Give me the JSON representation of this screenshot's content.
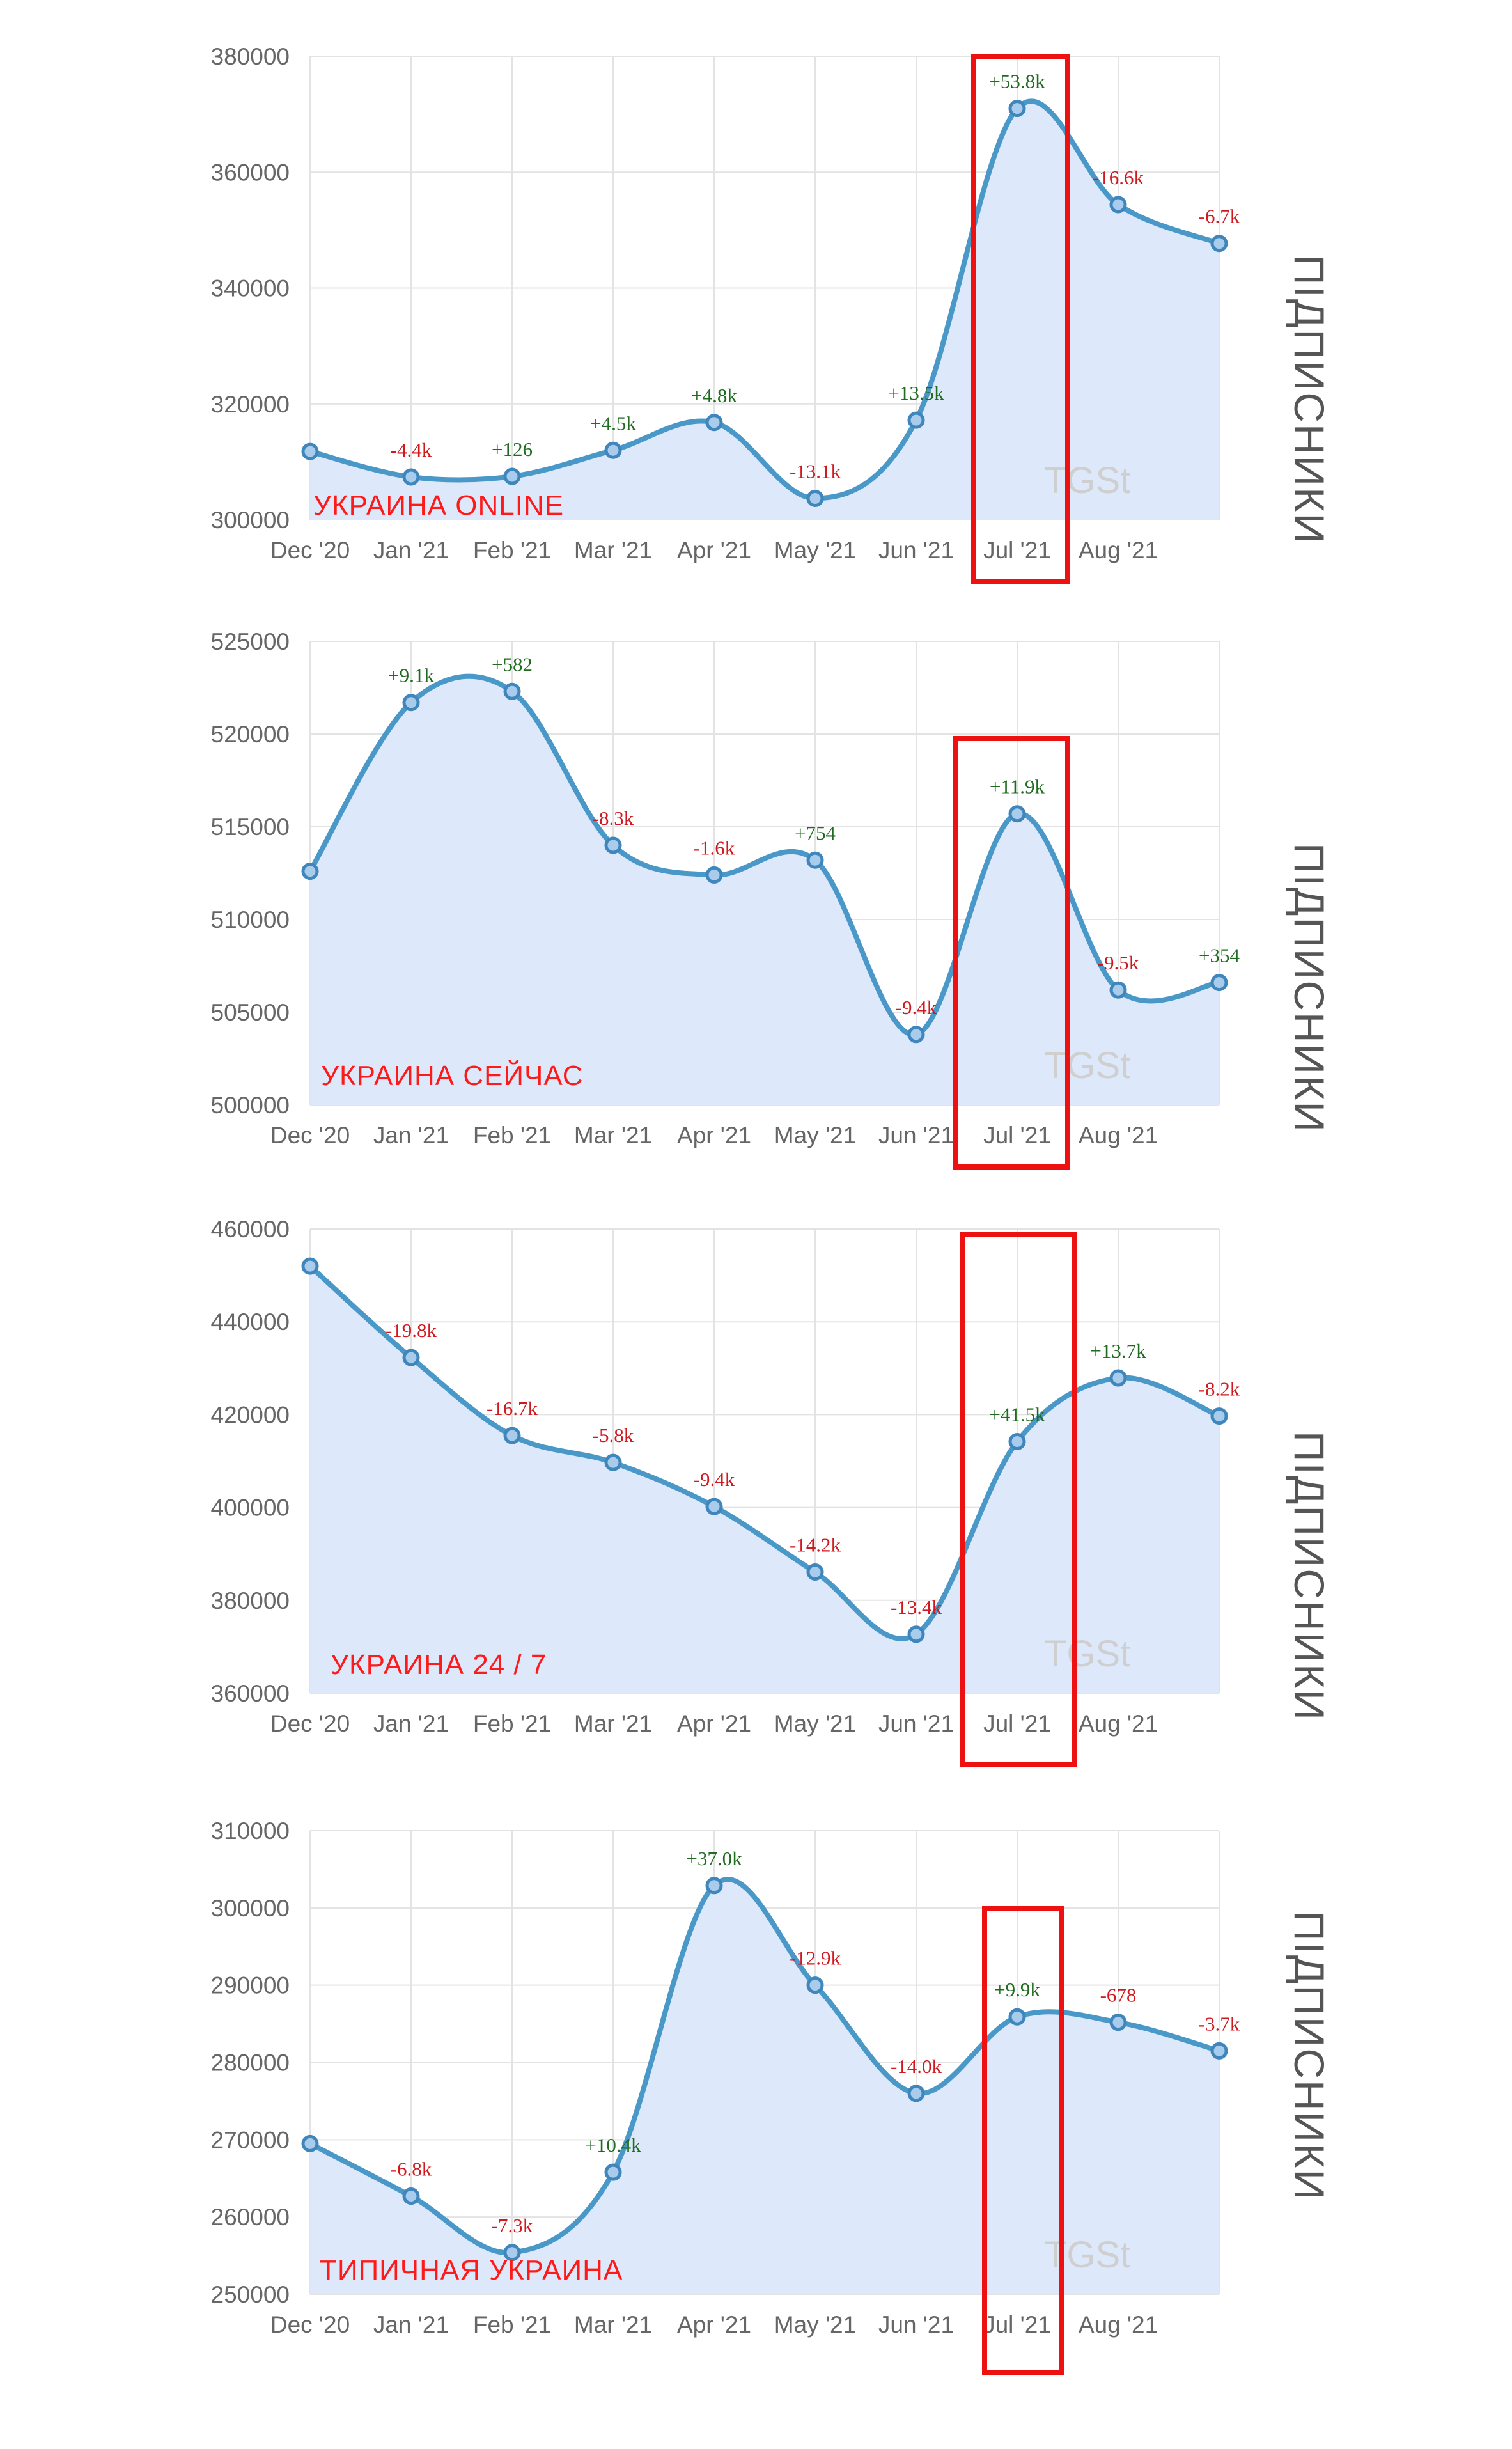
{
  "side_label": "ПІДПИСНИКИ",
  "watermark": "TGSt",
  "chart_data": [
    {
      "type": "area",
      "channel": "УКРАИНА ONLINE",
      "categories": [
        "Dec '20",
        "Jan '21",
        "Feb '21",
        "Mar '21",
        "Apr '21",
        "May '21",
        "Jun '21",
        "Jul '21",
        "Aug '21",
        ""
      ],
      "series": [
        {
          "values": [
            311800,
            307400,
            307500,
            312000,
            316800,
            303700,
            317200,
            371000,
            354400,
            347700
          ]
        }
      ],
      "deltas": [
        "",
        "-4.4k",
        "+126",
        "+4.5k",
        "+4.8k",
        "-13.1k",
        "+13.5k",
        "+53.8k",
        "-16.6k",
        "-6.7k"
      ],
      "yticks": [
        "380000",
        "360000",
        "340000",
        "320000",
        "300000"
      ],
      "ylim": [
        300000,
        380000
      ],
      "highlight": "Jul '21"
    },
    {
      "type": "area",
      "channel": "УКРАИНА СЕЙЧАС",
      "categories": [
        "Dec '20",
        "Jan '21",
        "Feb '21",
        "Mar '21",
        "Apr '21",
        "May '21",
        "Jun '21",
        "Jul '21",
        "Aug '21",
        ""
      ],
      "series": [
        {
          "values": [
            512600,
            521700,
            522300,
            514000,
            512400,
            513200,
            503800,
            515700,
            506200,
            506600
          ]
        }
      ],
      "deltas": [
        "",
        "+9.1k",
        "+582",
        "-8.3k",
        "-1.6k",
        "+754",
        "-9.4k",
        "+11.9k",
        "-9.5k",
        "+354"
      ],
      "yticks": [
        "525000",
        "520000",
        "515000",
        "510000",
        "505000",
        "500000"
      ],
      "ylim": [
        500000,
        525000
      ],
      "highlight": "Jul '21"
    },
    {
      "type": "area",
      "channel": "УКРАИНА 24 / 7",
      "categories": [
        "Dec '20",
        "Jan '21",
        "Feb '21",
        "Mar '21",
        "Apr '21",
        "May '21",
        "Jun '21",
        "Jul '21",
        "Aug '21",
        ""
      ],
      "series": [
        {
          "values": [
            452000,
            432300,
            415500,
            409700,
            400200,
            386100,
            372700,
            414200,
            427900,
            419700
          ]
        }
      ],
      "deltas": [
        "",
        "-19.8k",
        "-16.7k",
        "-5.8k",
        "-9.4k",
        "-14.2k",
        "-13.4k",
        "+41.5k",
        "+13.7k",
        "-8.2k"
      ],
      "yticks": [
        "460000",
        "440000",
        "420000",
        "400000",
        "380000",
        "360000"
      ],
      "ylim": [
        360000,
        460000
      ],
      "highlight": "Jul '21"
    },
    {
      "type": "area",
      "channel": "ТИПИЧНАЯ УКРАИНА",
      "categories": [
        "Dec '20",
        "Jan '21",
        "Feb '21",
        "Mar '21",
        "Apr '21",
        "May '21",
        "Jun '21",
        "Jul '21",
        "Aug '21",
        ""
      ],
      "series": [
        {
          "values": [
            269500,
            262700,
            255400,
            265800,
            302900,
            290000,
            276000,
            285900,
            285200,
            281500
          ]
        }
      ],
      "deltas": [
        "",
        "-6.8k",
        "-7.3k",
        "+10.4k",
        "+37.0k",
        "-12.9k",
        "-14.0k",
        "+9.9k",
        "-678",
        "-3.7k"
      ],
      "yticks": [
        "310000",
        "300000",
        "290000",
        "280000",
        "270000",
        "260000",
        "250000"
      ],
      "ylim": [
        250000,
        310000
      ],
      "highlight": "Jul '21"
    }
  ]
}
